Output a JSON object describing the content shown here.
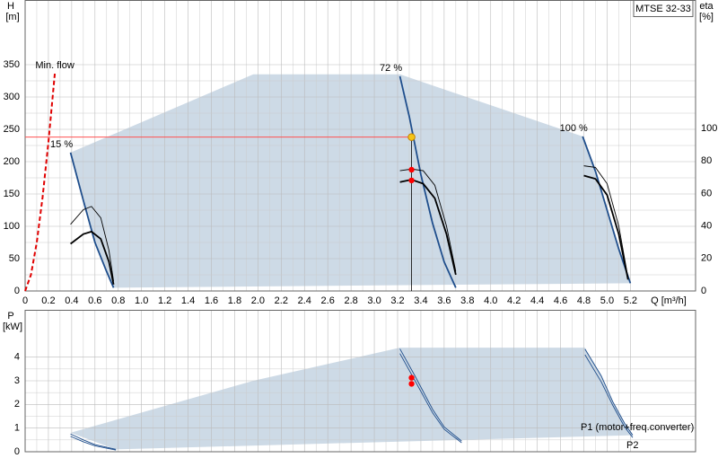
{
  "chart_data": [
    {
      "type": "line",
      "title": "MTSE 32-33",
      "xlabel": "Q [m³/h]",
      "ylabel": "H",
      "yunit": "[m]",
      "y2label": "eta",
      "y2unit": "[%]",
      "xlim": [
        0,
        5.76
      ],
      "xticks": [
        0,
        0.2,
        0.4,
        0.6,
        0.8,
        {
          "value": 1,
          "label": "1.0"
        },
        1.2,
        1.4,
        1.6,
        1.8,
        {
          "value": 2,
          "label": "2.0"
        },
        2.2,
        2.4,
        2.6,
        2.8,
        {
          "value": 3,
          "label": "3.0"
        },
        3.2,
        3.4,
        3.6,
        3.8,
        {
          "value": 4,
          "label": "4.0"
        },
        4.2,
        4.4,
        4.6,
        4.8,
        {
          "value": 5,
          "label": "5.0"
        },
        5.2
      ],
      "ylim": [
        0,
        450
      ],
      "yticks": [
        0,
        50,
        100,
        150,
        200,
        250,
        300,
        350
      ],
      "y2lim": [
        0,
        179
      ],
      "y2ticks": [
        0,
        20,
        40,
        60,
        80,
        100
      ],
      "grid": true,
      "region": {
        "color": "#cddae6",
        "x": [
          0.39,
          1.96,
          3.22,
          4.79,
          4.9,
          5.0,
          5.1,
          5.2,
          0.76,
          0.7,
          0.6,
          0.5
        ],
        "values": [
          214,
          335,
          335,
          239,
          185,
          125,
          65,
          12,
          5,
          30,
          75,
          140
        ]
      },
      "series": [
        {
          "name": "Min. flow",
          "color": "#e00000",
          "style": "dashed",
          "x": [
            0,
            0.05,
            0.1,
            0.15,
            0.2,
            0.255
          ],
          "values": [
            0,
            25,
            75,
            145,
            230,
            336
          ]
        },
        {
          "name": "15 %",
          "color": "#1f4e8c",
          "style": "thick",
          "x": [
            0.39,
            0.5,
            0.6,
            0.7,
            0.76
          ],
          "values": [
            214,
            140,
            75,
            30,
            5
          ]
        },
        {
          "name": "72 %",
          "color": "#1f4e8c",
          "style": "thick",
          "x": [
            3.22,
            3.3,
            3.4,
            3.5,
            3.6,
            3.7
          ],
          "values": [
            332,
            270,
            180,
            105,
            45,
            5
          ]
        },
        {
          "name": "100 %",
          "color": "#1f4e8c",
          "style": "thick",
          "x": [
            4.79,
            4.9,
            5.0,
            5.1,
            5.2
          ],
          "values": [
            239,
            185,
            125,
            65,
            12
          ]
        },
        {
          "color": "#000000",
          "style": "thin",
          "axis": "y2",
          "x": [
            0.39,
            0.5,
            0.57,
            0.65,
            0.72,
            0.76
          ],
          "values": [
            41,
            50,
            52,
            45,
            25,
            6
          ]
        },
        {
          "color": "#000000",
          "style": "thick",
          "axis": "y2",
          "x": [
            0.39,
            0.5,
            0.57,
            0.65,
            0.72,
            0.76
          ],
          "values": [
            29,
            35,
            36.5,
            32,
            18,
            4
          ]
        },
        {
          "color": "#000000",
          "style": "thin",
          "axis": "y2",
          "x": [
            3.22,
            3.32,
            3.42,
            3.52,
            3.62,
            3.7
          ],
          "values": [
            74,
            75,
            74,
            65,
            40,
            12
          ]
        },
        {
          "color": "#000000",
          "style": "thick",
          "axis": "y2",
          "x": [
            3.22,
            3.32,
            3.42,
            3.52,
            3.62,
            3.7
          ],
          "values": [
            67,
            68.5,
            66,
            57,
            35,
            10
          ]
        },
        {
          "color": "#000000",
          "style": "thin",
          "axis": "y2",
          "x": [
            4.8,
            4.9,
            5.0,
            5.1,
            5.18
          ],
          "values": [
            77,
            76,
            66,
            40,
            8
          ]
        },
        {
          "color": "#000000",
          "style": "thick",
          "axis": "y2",
          "x": [
            4.8,
            4.9,
            5.0,
            5.1,
            5.18
          ],
          "values": [
            71,
            69,
            59,
            35,
            7
          ]
        }
      ],
      "duty_point": {
        "x": 3.32,
        "y": 238,
        "color": "#f5c518",
        "line_color": "#ff5050"
      },
      "points": {
        "color": "#ff0000",
        "axis": "y2",
        "x": [
          3.32,
          3.32
        ],
        "values": [
          74.6,
          68
        ]
      }
    },
    {
      "type": "line",
      "ylabel": "P",
      "yunit": "[kW]",
      "xlim": [
        0,
        5.76
      ],
      "ylim": [
        0,
        6
      ],
      "yticks": [
        0,
        1,
        2,
        3,
        4
      ],
      "grid_x": [
        0,
        0.2,
        0.4,
        0.6,
        0.8,
        1,
        1.2,
        1.4,
        1.6,
        1.8,
        2,
        2.2,
        2.4,
        2.6,
        2.8,
        3,
        3.2,
        3.4,
        3.6,
        3.8,
        4,
        4.2,
        4.4,
        4.6,
        4.8,
        5,
        5.2
      ],
      "grid": true,
      "region": {
        "color": "#cddae6",
        "x": [
          0.39,
          1.96,
          3.22,
          4.81,
          4.95,
          5.05,
          5.15,
          5.22,
          0.78
        ],
        "values": [
          0.8,
          3.0,
          4.4,
          4.4,
          3.25,
          2.15,
          1.25,
          0.7,
          0.1
        ]
      },
      "series": [
        {
          "color": "#1f4e8c",
          "style": "thin",
          "x": [
            0.39,
            0.5,
            0.6,
            0.78
          ],
          "values": [
            0.75,
            0.5,
            0.3,
            0.1
          ]
        },
        {
          "color": "#1f4e8c",
          "style": "thin",
          "x": [
            0.39,
            0.5,
            0.6,
            0.78
          ],
          "values": [
            0.65,
            0.42,
            0.25,
            0.07
          ]
        },
        {
          "color": "#1f4e8c",
          "style": "thin",
          "x": [
            3.22,
            3.35,
            3.5,
            3.6,
            3.75
          ],
          "values": [
            4.35,
            3.2,
            1.8,
            1.05,
            0.45
          ]
        },
        {
          "color": "#1f4e8c",
          "style": "thin",
          "x": [
            3.22,
            3.35,
            3.5,
            3.6,
            3.75
          ],
          "values": [
            4.15,
            3.0,
            1.65,
            0.95,
            0.38
          ]
        },
        {
          "name": "P1 (motor+freq.converter)",
          "color": "#1f4e8c",
          "style": "thin",
          "x": [
            4.81,
            4.95,
            5.05,
            5.15,
            5.22
          ],
          "values": [
            4.34,
            3.2,
            2.1,
            1.2,
            0.7
          ]
        },
        {
          "name": "P2",
          "color": "#1f4e8c",
          "style": "thin",
          "x": [
            4.81,
            4.95,
            5.05,
            5.15,
            5.22
          ],
          "values": [
            4.1,
            2.95,
            1.95,
            1.05,
            0.6
          ]
        }
      ],
      "points": {
        "color": "#ff0000",
        "x": [
          3.32,
          3.32
        ],
        "values": [
          3.13,
          2.87
        ]
      }
    }
  ]
}
